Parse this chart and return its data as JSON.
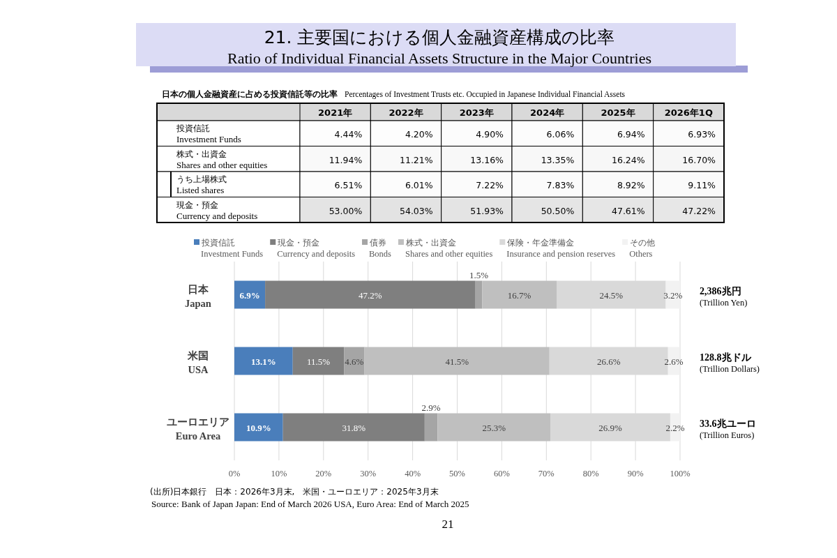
{
  "chart_data": [
    {
      "type": "heatmap",
      "title": "21. 主要国における個人金融資産構成の比率",
      "subtitle": "Ratio of Individual Financial Assets Structure in the Major Countries",
      "annotations": [
        "日本の個人金融資産に占める投資信託等の比率",
        "Percentages of Investment Trusts etc. Occupied in Japanese Individual Financial Assets"
      ],
      "categories": [
        "2021年",
        "2022年",
        "2023年",
        "2024年",
        "2025年",
        "2026年1Q"
      ],
      "y_categories": [
        "投資信託\nInvestment Funds",
        "株式・出資金\nShares and other equities",
        "うち上場株式\nListed shares",
        "現金・預金\nCurrency and deposits"
      ],
      "cells": [
        [
          4.44,
          4.2,
          4.9,
          6.06,
          6.94,
          6.93
        ],
        [
          11.94,
          11.21,
          13.16,
          13.35,
          16.24,
          16.7
        ],
        [
          6.51,
          6.01,
          7.22,
          7.83,
          8.92,
          9.11
        ],
        [
          53.0,
          54.03,
          51.93,
          50.5,
          47.61,
          47.22
        ]
      ],
      "cell_labels": [
        [
          "4.44%",
          "4.20%",
          "4.90%",
          "6.06%",
          "6.94%",
          "6.93%"
        ],
        [
          "11.94%",
          "11.21%",
          "13.16%",
          "13.35%",
          "16.24%",
          "16.70%"
        ],
        [
          "6.51%",
          "6.01%",
          "7.22%",
          "7.83%",
          "8.92%",
          "9.11%"
        ],
        [
          "53.00%",
          "54.03%",
          "51.93%",
          "50.50%",
          "47.61%",
          "47.22%"
        ]
      ]
    },
    {
      "type": "bar",
      "orientation": "horizontal",
      "stacked": true,
      "grid": "x",
      "legend": "top",
      "categories": [
        "日本\nJapan",
        "米国\nUSA",
        "ユーロエリア\nEuro Area"
      ],
      "xlim": [
        0,
        100
      ],
      "xticks": [
        {
          "value": 0,
          "label": "0%"
        },
        {
          "value": 10,
          "label": "10%"
        },
        {
          "value": 20,
          "label": "20%"
        },
        {
          "value": 30,
          "label": "30%"
        },
        {
          "value": 40,
          "label": "40%"
        },
        {
          "value": 50,
          "label": "50%"
        },
        {
          "value": 60,
          "label": "60%"
        },
        {
          "value": 70,
          "label": "70%"
        },
        {
          "value": 80,
          "label": "80%"
        },
        {
          "value": 90,
          "label": "90%"
        },
        {
          "value": 100,
          "label": "100%"
        }
      ],
      "series": [
        {
          "name": "投資信託\nInvestment Funds",
          "color": "#4a7ebb",
          "values": [
            6.9,
            13.1,
            10.9
          ],
          "value_labels": [
            "6.9%",
            "13.1%",
            "10.9%"
          ]
        },
        {
          "name": "現金・預金\nCurrency and deposits",
          "color": "#7f7f7f",
          "values": [
            47.2,
            11.5,
            31.8
          ],
          "value_labels": [
            "47.2%",
            "11.5%",
            "31.8%"
          ]
        },
        {
          "name": "債券\nBonds",
          "color": "#a5a5a5",
          "values": [
            1.5,
            4.6,
            2.9
          ],
          "value_labels": [
            "1.5%",
            "4.6%",
            "2.9%"
          ]
        },
        {
          "name": "株式・出資金\nShares and other equities",
          "color": "#bfbfbf",
          "values": [
            16.7,
            41.5,
            25.3
          ],
          "value_labels": [
            "16.7%",
            "41.5%",
            "25.3%"
          ]
        },
        {
          "name": "保険・年金準備金\nInsurance and pension reserves",
          "color": "#d9d9d9",
          "values": [
            24.5,
            26.6,
            26.9
          ],
          "value_labels": [
            "24.5%",
            "26.6%",
            "26.9%"
          ]
        },
        {
          "name": "その他\nOthers",
          "color": "#f2f2f2",
          "values": [
            3.2,
            2.6,
            2.2
          ],
          "value_labels": [
            "3.2%",
            "2.6%",
            "2.2%"
          ]
        }
      ],
      "annotations": [
        "2,386兆円\n(Trillion Yen)",
        "128.8兆ドル\n(Trillion Dollars)",
        "33.6兆ユーロ\n(Trillion Euros)",
        "(出所)日本銀行　日本：2026年3月末,　米国・ユーロエリア：2025年3月末",
        "Source: Bank of Japan  Japan: End of March 2026   USA, Euro Area: End of March 2025",
        "21"
      ]
    }
  ]
}
